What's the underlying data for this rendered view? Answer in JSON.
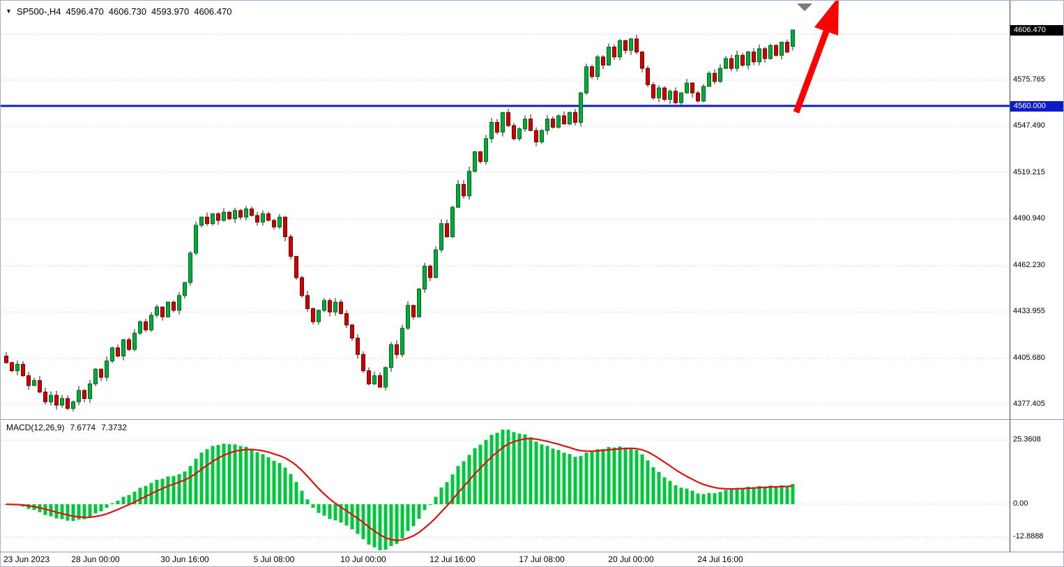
{
  "icons": {
    "dropdown": "▼"
  },
  "header": {
    "symbol_period": "SP500-,H4",
    "open": "4596.470",
    "high": "4606.730",
    "low": "4593.970",
    "close": "4606.470"
  },
  "price_axis": {
    "current_badge": "4606.470",
    "line_badge": "4560.000"
  },
  "macd_panel": {
    "label": "MACD(12,26,9)",
    "value_main": "7.6774",
    "value_signal": "7.3732",
    "ticks": [
      "25.3608",
      "0.00",
      "-12.8888"
    ]
  },
  "colors": {
    "bull": "#00ad3c",
    "bull_edge": "#006417",
    "bear": "#d20000",
    "bear_edge": "#6e0000",
    "wick": "#1a1a1a",
    "grid": "#c2c2c2",
    "separator": "#9a9a9a",
    "axis_line": "#444444",
    "hline": "#0d1cc9",
    "arrow": "#ff0000",
    "marker_triangle": "#7b7b7b",
    "macd_hist": "#00c83c",
    "macd_signal": "#e01010"
  },
  "chart_data": {
    "type": "candlestick",
    "title": "SP500-,H4",
    "x_unit": "H4 bars",
    "ohlc_display": {
      "open": 4596.47,
      "high": 4606.73,
      "low": 4593.97,
      "close": 4606.47
    },
    "hline": 4560.0,
    "price_ticks": [
      4575.765,
      4547.49,
      4519.215,
      4490.94,
      4462.23,
      4433.955,
      4405.68,
      4377.405
    ],
    "price_grid_extra": [
      4604.04
    ],
    "time_labels": [
      {
        "text": "23 Jun 2023",
        "bar": 0
      },
      {
        "text": "28 Jun 00:00",
        "bar": 16
      },
      {
        "text": "30 Jun 16:00",
        "bar": 32
      },
      {
        "text": "5 Jul 08:00",
        "bar": 48
      },
      {
        "text": "10 Jul 00:00",
        "bar": 64
      },
      {
        "text": "12 Jul 16:00",
        "bar": 80
      },
      {
        "text": "17 Jul 08:00",
        "bar": 96
      },
      {
        "text": "20 Jul 00:00",
        "bar": 112
      },
      {
        "text": "24 Jul 16:00",
        "bar": 128
      }
    ],
    "closes": [
      4403,
      4398,
      4402,
      4395,
      4389,
      4392,
      4385,
      4379,
      4383,
      4377,
      4381,
      4375,
      4379,
      4386,
      4381,
      4390,
      4399,
      4394,
      4404,
      4412,
      4407,
      4417,
      4411,
      4421,
      4428,
      4423,
      4432,
      4437,
      4431,
      4440,
      4435,
      4444,
      4452,
      4470,
      4487,
      4492,
      4488,
      4494,
      4490,
      4495,
      4491,
      4496,
      4492,
      4497,
      4493,
      4489,
      4494,
      4490,
      4486,
      4492,
      4480,
      4468,
      4455,
      4444,
      4436,
      4428,
      4435,
      4441,
      4434,
      4440,
      4433,
      4426,
      4418,
      4408,
      4398,
      4390,
      4395,
      4388,
      4400,
      4414,
      4408,
      4424,
      4438,
      4431,
      4448,
      4462,
      4455,
      4472,
      4488,
      4480,
      4498,
      4512,
      4505,
      4520,
      4532,
      4526,
      4540,
      4550,
      4544,
      4556,
      4548,
      4540,
      4546,
      4552,
      4545,
      4538,
      4545,
      4552,
      4547,
      4554,
      4549,
      4556,
      4550,
      4568,
      4584,
      4578,
      4590,
      4585,
      4596,
      4590,
      4600,
      4594,
      4601,
      4593,
      4583,
      4573,
      4565,
      4571,
      4564,
      4569,
      4562,
      4568,
      4574,
      4568,
      4563,
      4572,
      4580,
      4575,
      4583,
      4589,
      4583,
      4591,
      4585,
      4593,
      4587,
      4595,
      4589,
      4597,
      4591,
      4599,
      4593,
      4606.47
    ],
    "indicator": {
      "type": "MACD",
      "fast": 12,
      "slow": 26,
      "signal": 9,
      "last_main": 7.6774,
      "last_signal": 7.3732,
      "axis_max": 25.3608,
      "axis_min": -12.8888
    }
  }
}
